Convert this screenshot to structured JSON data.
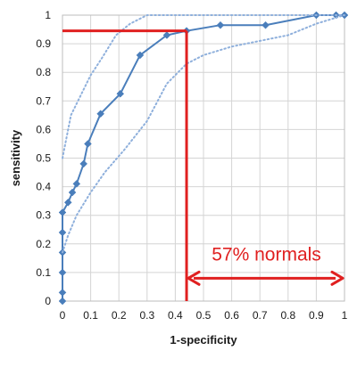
{
  "chart_data": {
    "type": "line",
    "xlabel": "1-specificity",
    "ylabel": "sensitivity",
    "xlim": [
      0,
      1
    ],
    "ylim": [
      0,
      1
    ],
    "x_ticks": [
      "0",
      "0.1",
      "0.2",
      "0.3",
      "0.4",
      "0.5",
      "0.6",
      "0.7",
      "0.8",
      "0.9",
      "1"
    ],
    "y_ticks": [
      "0",
      "0.1",
      "0.2",
      "0.3",
      "0.4",
      "0.5",
      "0.6",
      "0.7",
      "0.8",
      "0.9",
      "1"
    ],
    "grid": true,
    "series": [
      {
        "role": "roc-curve",
        "style": "solid-markers",
        "color": "#4a7ebb",
        "points": [
          [
            0,
            0
          ],
          [
            0,
            0.03
          ],
          [
            0,
            0.1
          ],
          [
            0,
            0.17
          ],
          [
            0,
            0.24
          ],
          [
            0,
            0.31
          ],
          [
            0.02,
            0.345
          ],
          [
            0.035,
            0.38
          ],
          [
            0.05,
            0.41
          ],
          [
            0.075,
            0.48
          ],
          [
            0.09,
            0.55
          ],
          [
            0.135,
            0.655
          ],
          [
            0.205,
            0.725
          ],
          [
            0.275,
            0.86
          ],
          [
            0.37,
            0.93
          ],
          [
            0.44,
            0.945
          ],
          [
            0.56,
            0.965
          ],
          [
            0.72,
            0.965
          ],
          [
            0.9,
            1.0
          ],
          [
            0.97,
            1.0
          ],
          [
            1.0,
            1.0
          ]
        ]
      },
      {
        "role": "upper-confidence-band",
        "style": "dotted",
        "color": "#8fb0dc",
        "points": [
          [
            0,
            0.5
          ],
          [
            0.03,
            0.65
          ],
          [
            0.07,
            0.73
          ],
          [
            0.1,
            0.79
          ],
          [
            0.14,
            0.85
          ],
          [
            0.19,
            0.93
          ],
          [
            0.24,
            0.97
          ],
          [
            0.3,
            1.0
          ],
          [
            1.0,
            1.0
          ]
        ]
      },
      {
        "role": "lower-confidence-band",
        "style": "dotted",
        "color": "#8fb0dc",
        "points": [
          [
            0,
            0.17
          ],
          [
            0.02,
            0.23
          ],
          [
            0.05,
            0.3
          ],
          [
            0.1,
            0.38
          ],
          [
            0.15,
            0.45
          ],
          [
            0.22,
            0.53
          ],
          [
            0.3,
            0.63
          ],
          [
            0.37,
            0.76
          ],
          [
            0.44,
            0.83
          ],
          [
            0.5,
            0.86
          ],
          [
            0.6,
            0.89
          ],
          [
            0.7,
            0.91
          ],
          [
            0.8,
            0.93
          ],
          [
            0.9,
            0.97
          ],
          [
            1.0,
            1.0
          ]
        ]
      }
    ],
    "annotation": {
      "text": "57% normals",
      "color": "#e02020",
      "threshold_x": 0.44,
      "threshold_y": 0.945,
      "arrow_y": 0.08,
      "arrow_from_x": 0.44,
      "arrow_to_x": 1.0
    }
  }
}
